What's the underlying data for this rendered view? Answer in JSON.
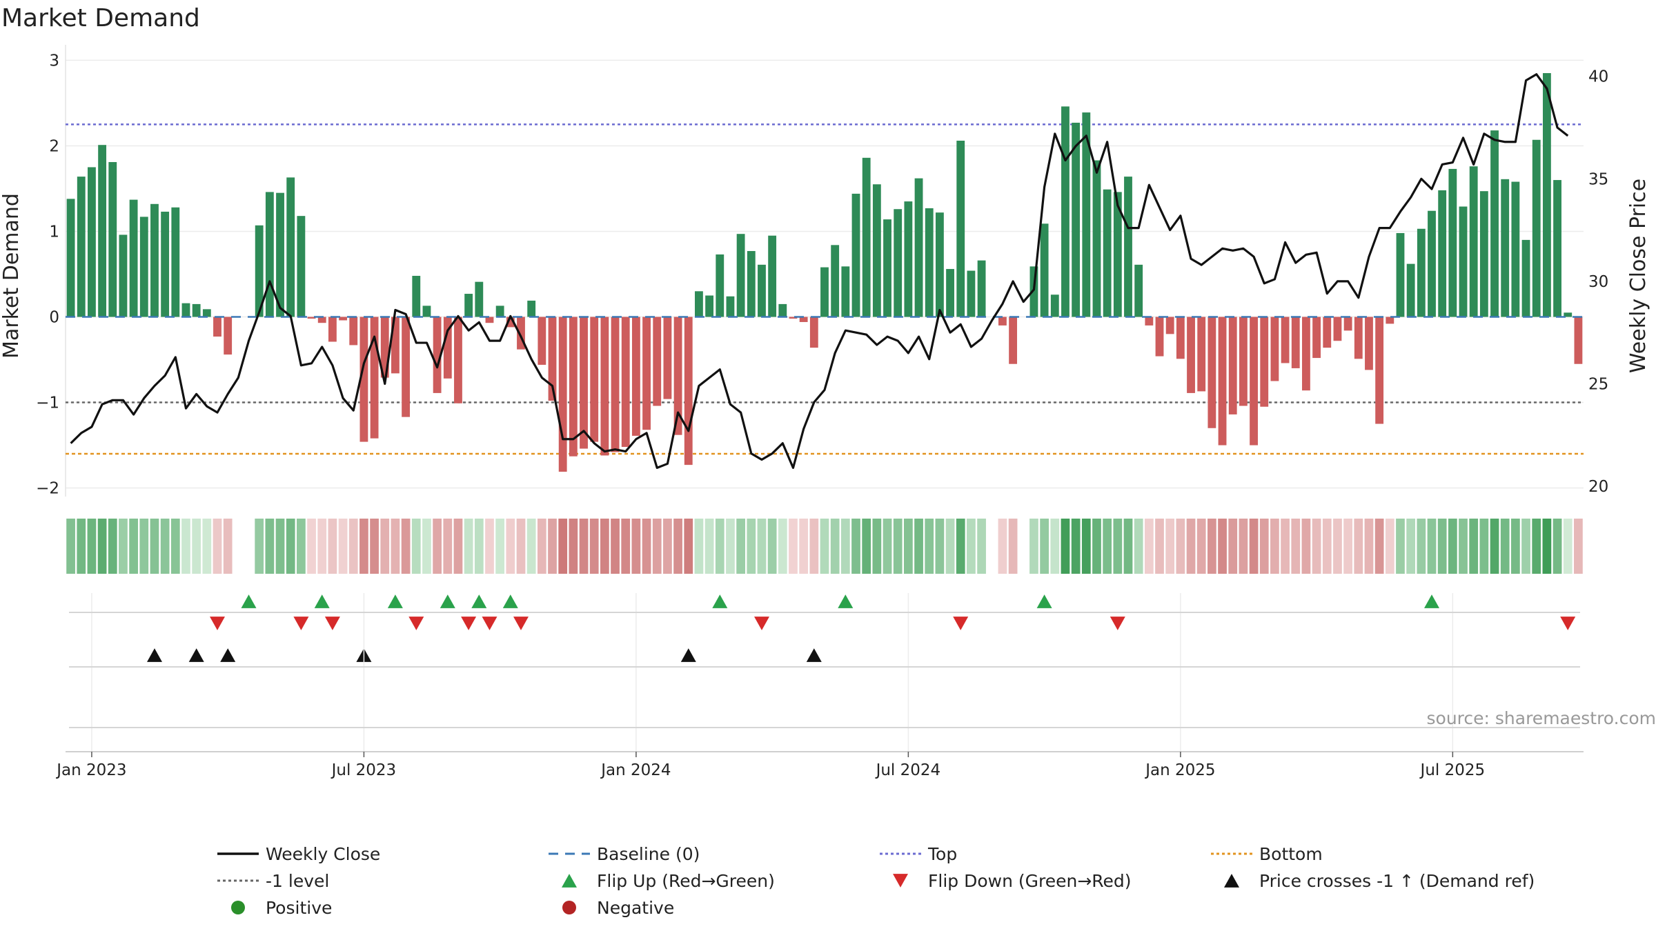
{
  "chart_data": {
    "type": "bar",
    "title": "Market Demand",
    "ylabel": "Market Demand",
    "y2label": "Weekly Close Price",
    "ylim": [
      -2.1,
      3.1
    ],
    "y2lim": [
      19.5,
      41.2
    ],
    "yticks": [
      3,
      2,
      1,
      0,
      -1,
      -2
    ],
    "ytick_labels": [
      "3",
      "2",
      "1",
      "0",
      "−1",
      "−2"
    ],
    "y2ticks": [
      40,
      35,
      30,
      25,
      20
    ],
    "y2tick_labels": [
      "40",
      "35",
      "30",
      "25",
      "20"
    ],
    "reference_lines": {
      "top": 2.25,
      "bottom": -1.6,
      "minus_one": -1.0,
      "baseline": 0
    },
    "x_ticks": [
      {
        "label": "Jan 2023",
        "week": 2
      },
      {
        "label": "Jul 2023",
        "week": 28
      },
      {
        "label": "Jan 2024",
        "week": 54
      },
      {
        "label": "Jul 2024",
        "week": 80
      },
      {
        "label": "Jan 2025",
        "week": 106
      },
      {
        "label": "Jul 2025",
        "week": 132
      }
    ],
    "demand": [
      1.38,
      1.64,
      1.75,
      2.01,
      1.81,
      0.96,
      1.37,
      1.17,
      1.32,
      1.23,
      1.28,
      0.16,
      0.15,
      0.09,
      -0.23,
      -0.44,
      0,
      0,
      1.07,
      1.46,
      1.45,
      1.63,
      1.18,
      -0.02,
      -0.07,
      -0.29,
      -0.04,
      -0.33,
      -1.46,
      -1.42,
      -0.71,
      -0.66,
      -1.17,
      0.48,
      0.13,
      -0.89,
      -0.72,
      -1.01,
      0.27,
      0.41,
      -0.07,
      0.13,
      -0.12,
      -0.38,
      0.19,
      -0.56,
      -0.98,
      -1.81,
      -1.63,
      -1.54,
      -1.46,
      -1.62,
      -1.58,
      -1.52,
      -1.39,
      -1.32,
      -1.04,
      -0.96,
      -1.38,
      -1.73,
      0.3,
      0.25,
      0.73,
      0.24,
      0.97,
      0.77,
      0.61,
      0.95,
      0.15,
      -0.02,
      -0.06,
      -0.36,
      0.58,
      0.84,
      0.59,
      1.44,
      1.86,
      1.55,
      1.14,
      1.26,
      1.35,
      1.62,
      1.27,
      1.22,
      0.56,
      2.06,
      0.54,
      0.66,
      0,
      -0.1,
      -0.55,
      0,
      0.59,
      1.09,
      0.26,
      2.46,
      2.27,
      2.39,
      1.83,
      1.49,
      1.46,
      1.64,
      0.61,
      -0.1,
      -0.46,
      -0.2,
      -0.49,
      -0.89,
      -0.87,
      -1.3,
      -1.5,
      -1.14,
      -1.04,
      -1.5,
      -1.05,
      -0.75,
      -0.54,
      -0.6,
      -0.86,
      -0.48,
      -0.36,
      -0.28,
      -0.16,
      -0.49,
      -0.62,
      -1.25,
      -0.08,
      0.98,
      0.62,
      1.03,
      1.24,
      1.48,
      1.73,
      1.29,
      1.76,
      1.47,
      2.18,
      1.61,
      1.58,
      0.9,
      2.07,
      2.85,
      1.6,
      0.05,
      -0.55
    ],
    "price": [
      22.1,
      22.6,
      22.9,
      24.0,
      24.2,
      24.2,
      23.5,
      24.3,
      24.9,
      25.4,
      26.3,
      23.8,
      24.5,
      23.9,
      23.6,
      24.5,
      25.3,
      27.1,
      28.5,
      30.0,
      28.7,
      28.3,
      25.9,
      26.0,
      26.8,
      25.9,
      24.3,
      23.7,
      26.0,
      27.3,
      25.0,
      28.6,
      28.4,
      27.0,
      27.0,
      25.8,
      27.6,
      28.3,
      27.6,
      28.0,
      27.1,
      27.1,
      28.3,
      27.3,
      26.2,
      25.3,
      24.9,
      22.3,
      22.3,
      22.7,
      22.1,
      21.7,
      21.8,
      21.7,
      22.3,
      22.6,
      20.9,
      21.1,
      23.6,
      22.7,
      24.9,
      25.3,
      25.7,
      24.0,
      23.6,
      21.6,
      21.3,
      21.6,
      22.1,
      20.9,
      22.8,
      24.1,
      24.7,
      26.5,
      27.6,
      27.5,
      27.4,
      26.9,
      27.3,
      27.1,
      26.5,
      27.3,
      26.2,
      28.6,
      27.5,
      27.9,
      26.8,
      27.2,
      28.1,
      28.9,
      30.0,
      29.0,
      29.6,
      34.6,
      37.2,
      35.9,
      36.6,
      37.1,
      35.3,
      36.8,
      33.7,
      32.6,
      32.6,
      34.7,
      33.6,
      32.5,
      33.2,
      31.1,
      30.8,
      31.2,
      31.6,
      31.5,
      31.6,
      31.2,
      29.9,
      30.1,
      31.9,
      30.9,
      31.3,
      31.4,
      29.4,
      30.0,
      30.0,
      29.2,
      31.2,
      32.6,
      32.6,
      33.4,
      34.1,
      35.0,
      34.5,
      35.7,
      35.8,
      37.0,
      35.7,
      37.2,
      36.9,
      36.8,
      36.8,
      39.8,
      40.1,
      39.4,
      37.5,
      37.1
    ],
    "flip_up_weeks": [
      17,
      24,
      31,
      36,
      39,
      42,
      62,
      74,
      93,
      130
    ],
    "flip_down_weeks": [
      14,
      22,
      25,
      33,
      38,
      40,
      43,
      66,
      85,
      100,
      143
    ],
    "price_cross_weeks": [
      8,
      12,
      15,
      28,
      59,
      71
    ],
    "legend": [
      {
        "label": "Weekly Close",
        "style": "line",
        "color": "#111111"
      },
      {
        "label": "Baseline (0)",
        "style": "dash",
        "color": "#3b78b5"
      },
      {
        "label": "Top",
        "style": "dot",
        "color": "#6b6bd1"
      },
      {
        "label": "Bottom",
        "style": "dot",
        "color": "#e2931f"
      },
      {
        "label": "-1 level",
        "style": "dot",
        "color": "#666666"
      },
      {
        "label": "Flip Up (Red→Green)",
        "style": "tri-up",
        "color": "#2aa24b"
      },
      {
        "label": "Flip Down (Green→Red)",
        "style": "tri-down",
        "color": "#d62a2a"
      },
      {
        "label": "Price crosses -1 ↑ (Demand ref)",
        "style": "tri-up",
        "color": "#111111"
      },
      {
        "label": "Positive",
        "style": "dot-marker",
        "color": "#2a8f2a"
      },
      {
        "label": "Negative",
        "style": "dot-marker",
        "color": "#b32424"
      }
    ],
    "source": "source: sharemaestro.com"
  },
  "colors": {
    "positive_bar": "#2e8b57",
    "negative_bar": "#cd5c5c",
    "price_line": "#111111"
  }
}
